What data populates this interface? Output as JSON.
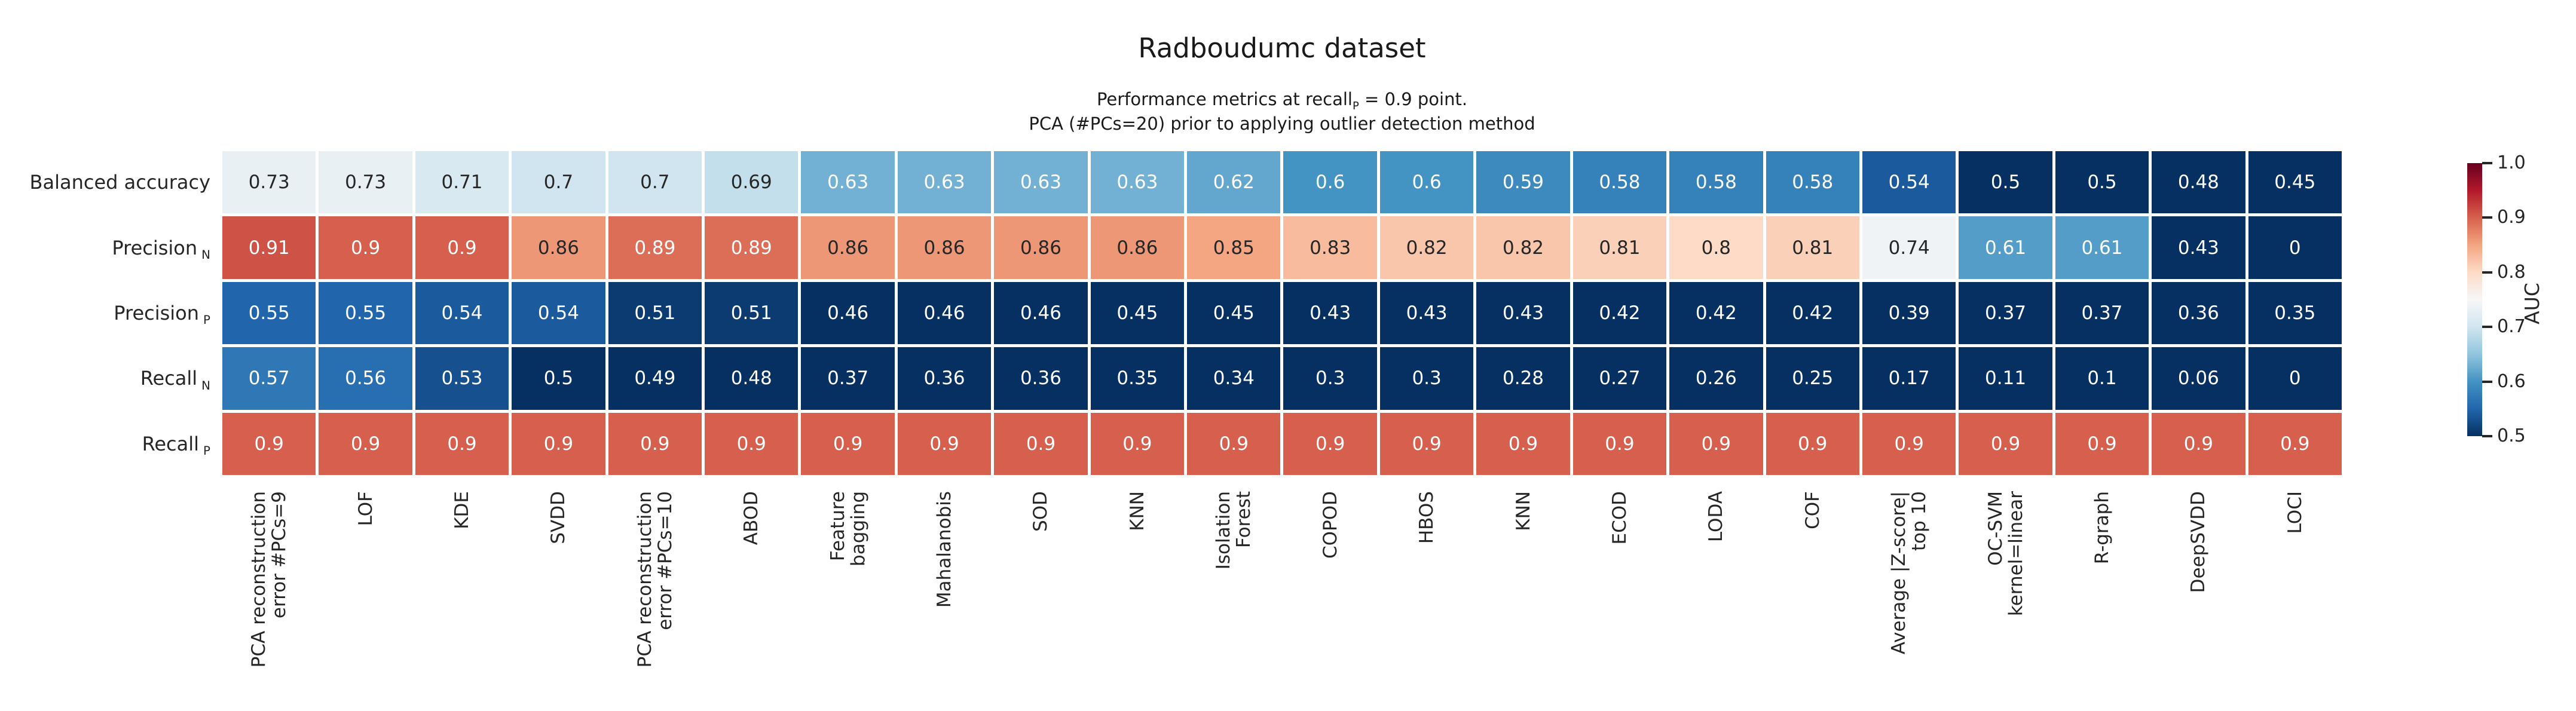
{
  "title": "Radboudumc dataset",
  "subtitle_line1": {
    "before": "Performance metrics at recall",
    "sub": "P",
    "after": " = 0.9 point."
  },
  "subtitle_line2": "PCA (#PCs=20) prior to applying outlier detection method",
  "chart_data": {
    "type": "heatmap",
    "title": "Radboudumc dataset",
    "subtitle": "Performance metrics at recall_P = 0.9 point. PCA (#PCs=20) prior to applying outlier detection method",
    "colormap": "RdBu_r",
    "vmin": 0.5,
    "vmax": 1.0,
    "grid": false,
    "colorbar_label": "AUC",
    "colorbar_ticks": [
      "1.0",
      "0.9",
      "0.8",
      "0.7",
      "0.6",
      "0.5"
    ],
    "rows": [
      {
        "base": "Balanced accuracy",
        "sub": ""
      },
      {
        "base": "Precision",
        "sub": "N"
      },
      {
        "base": "Precision",
        "sub": "P"
      },
      {
        "base": "Recall",
        "sub": "N"
      },
      {
        "base": "Recall",
        "sub": "P"
      }
    ],
    "columns": [
      "PCA reconstruction\nerror #PCs=9",
      "LOF",
      "KDE",
      "SVDD",
      "PCA reconstruction\nerror #PCs=10",
      "ABOD",
      "Feature\nbagging",
      "Mahalanobis",
      "SOD",
      "KNN",
      "Isolation\nForest",
      "COPOD",
      "HBOS",
      "KNN",
      "ECOD",
      "LODA",
      "COF",
      "Average |Z-score|\ntop 10",
      "OC-SVM\nkernel=linear",
      "R-graph",
      "DeepSVDD",
      "LOCI"
    ],
    "values": [
      [
        0.73,
        0.73,
        0.71,
        0.7,
        0.7,
        0.69,
        0.63,
        0.63,
        0.63,
        0.63,
        0.62,
        0.6,
        0.6,
        0.59,
        0.58,
        0.58,
        0.58,
        0.54,
        0.5,
        0.5,
        0.48,
        0.45
      ],
      [
        0.91,
        0.9,
        0.9,
        0.86,
        0.89,
        0.89,
        0.86,
        0.86,
        0.86,
        0.86,
        0.85,
        0.83,
        0.82,
        0.82,
        0.81,
        0.8,
        0.81,
        0.74,
        0.61,
        0.61,
        0.43,
        0
      ],
      [
        0.55,
        0.55,
        0.54,
        0.54,
        0.51,
        0.51,
        0.46,
        0.46,
        0.46,
        0.45,
        0.45,
        0.43,
        0.43,
        0.43,
        0.42,
        0.42,
        0.42,
        0.39,
        0.37,
        0.37,
        0.36,
        0.35
      ],
      [
        0.57,
        0.56,
        0.53,
        0.5,
        0.49,
        0.48,
        0.37,
        0.36,
        0.36,
        0.35,
        0.34,
        0.3,
        0.3,
        0.28,
        0.27,
        0.26,
        0.25,
        0.17,
        0.11,
        0.1,
        0.06,
        0
      ],
      [
        0.9,
        0.9,
        0.9,
        0.9,
        0.9,
        0.9,
        0.9,
        0.9,
        0.9,
        0.9,
        0.9,
        0.9,
        0.9,
        0.9,
        0.9,
        0.9,
        0.9,
        0.9,
        0.9,
        0.9,
        0.9,
        0.9
      ]
    ]
  },
  "colors": {
    "rdbu_r_stops": [
      "#053061",
      "#2166ac",
      "#4393c3",
      "#92c5de",
      "#d1e5f0",
      "#f7f7f7",
      "#fddbc7",
      "#f4a582",
      "#d6604d",
      "#b2182b",
      "#67001f"
    ],
    "dark_text": "#262626",
    "light_text": "#ffffff",
    "background": "#ffffff"
  }
}
